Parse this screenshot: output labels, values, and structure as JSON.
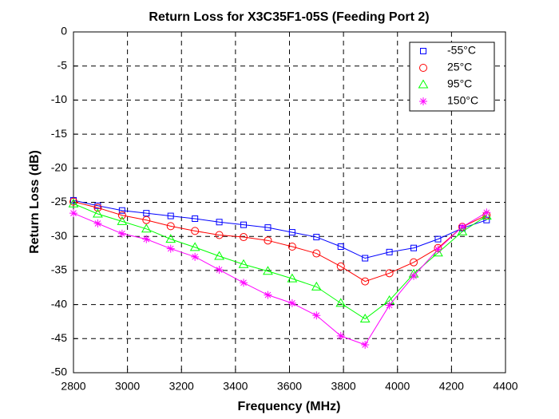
{
  "chart_data": {
    "type": "line",
    "title": "Return Loss for X3C35F1-05S (Feeding Port 2)",
    "x_label": "Frequency (MHz)",
    "y_label": "Return Loss (dB)",
    "x": [
      2800,
      2890,
      2980,
      3070,
      3160,
      3250,
      3340,
      3430,
      3520,
      3610,
      3700,
      3790,
      3880,
      3970,
      4060,
      4150,
      4240,
      4330
    ],
    "series": [
      {
        "name": "-55°C",
        "color": "#0000ff",
        "marker": "square",
        "values": [
          -24.7,
          -25.5,
          -26.2,
          -26.6,
          -27.0,
          -27.4,
          -27.9,
          -28.3,
          -28.7,
          -29.4,
          -30.1,
          -31.5,
          -33.2,
          -32.3,
          -31.7,
          -30.4,
          -28.8,
          -27.6
        ]
      },
      {
        "name": "25°C",
        "color": "#ff0000",
        "marker": "circle",
        "values": [
          -24.9,
          -25.8,
          -26.9,
          -27.6,
          -28.5,
          -29.2,
          -29.8,
          -30.1,
          -30.6,
          -31.5,
          -32.5,
          -34.4,
          -36.6,
          -35.4,
          -33.8,
          -31.7,
          -28.6,
          -26.9
        ]
      },
      {
        "name": "95°C",
        "color": "#00ff00",
        "marker": "triangle",
        "values": [
          -25.2,
          -26.7,
          -27.8,
          -28.9,
          -30.4,
          -31.6,
          -32.9,
          -34.1,
          -35.1,
          -36.2,
          -37.4,
          -39.8,
          -42.1,
          -39.4,
          -35.5,
          -32.4,
          -29.3,
          -27.0
        ]
      },
      {
        "name": "150°C",
        "color": "#ff00ff",
        "marker": "asterisk",
        "values": [
          -26.6,
          -28.1,
          -29.6,
          -30.4,
          -31.8,
          -33.0,
          -34.9,
          -36.8,
          -38.6,
          -39.8,
          -41.6,
          -44.6,
          -45.9,
          -40.1,
          -35.8,
          -31.9,
          -28.6,
          -26.5
        ]
      }
    ],
    "xlim": [
      2800,
      4400
    ],
    "xticks": [
      2800,
      3000,
      3200,
      3400,
      3600,
      3800,
      4000,
      4200,
      4400
    ],
    "ylim": [
      -50,
      0
    ],
    "yticks": [
      0,
      -5,
      -10,
      -15,
      -20,
      -25,
      -30,
      -35,
      -40,
      -45,
      -50
    ],
    "grid": true,
    "legend": "top-right"
  }
}
